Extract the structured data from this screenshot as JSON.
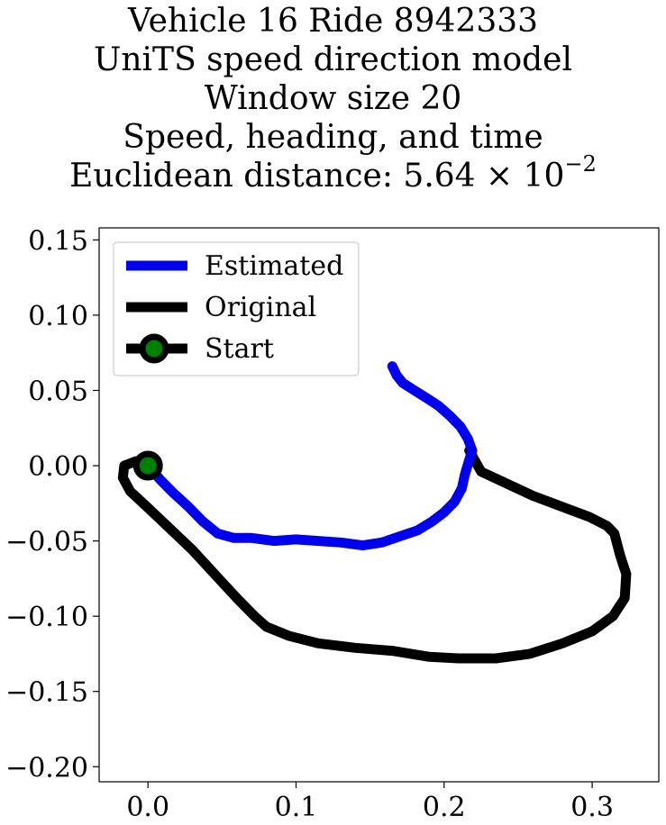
{
  "chart_data": {
    "type": "line",
    "title_lines": [
      "Vehicle 16 Ride 8942333",
      "UniTS speed direction model",
      "Window size 20",
      "Speed, heading, and time"
    ],
    "title_metric_label": "Euclidean distance: ",
    "title_metric_mantissa": "5.64",
    "title_metric_times": "×",
    "title_metric_base": "10",
    "title_metric_exponent": "−2",
    "xlim": [
      -0.033,
      0.345
    ],
    "ylim": [
      -0.21,
      0.158
    ],
    "x_ticks": [
      {
        "value": 0.0,
        "label": "0.0"
      },
      {
        "value": 0.1,
        "label": "0.1"
      },
      {
        "value": 0.2,
        "label": "0.2"
      },
      {
        "value": 0.3,
        "label": "0.3"
      }
    ],
    "y_ticks": [
      {
        "value": 0.15,
        "label": "0.15"
      },
      {
        "value": 0.1,
        "label": "0.10"
      },
      {
        "value": 0.05,
        "label": "0.05"
      },
      {
        "value": 0.0,
        "label": "0.00"
      },
      {
        "value": -0.05,
        "label": "−0.05"
      },
      {
        "value": -0.1,
        "label": "−0.10"
      },
      {
        "value": -0.15,
        "label": "−0.15"
      },
      {
        "value": -0.2,
        "label": "−0.20"
      }
    ],
    "legend": {
      "location": "upper-left",
      "entries": [
        {
          "label": "Estimated",
          "color": "#0000ee",
          "marker": "none"
        },
        {
          "label": "Original",
          "color": "#000000",
          "marker": "none"
        },
        {
          "label": "Start",
          "color": "#000000",
          "marker": "circle",
          "marker_face": "#008000"
        }
      ]
    },
    "series": [
      {
        "name": "Estimated",
        "color": "#0000ee",
        "x": [
          0.0,
          0.008,
          0.017,
          0.027,
          0.037,
          0.047,
          0.058,
          0.07,
          0.085,
          0.1,
          0.115,
          0.13,
          0.145,
          0.158,
          0.17,
          0.182,
          0.192,
          0.2,
          0.207,
          0.212,
          0.214,
          0.217,
          0.219,
          0.216,
          0.211,
          0.204,
          0.196,
          0.188,
          0.18,
          0.172,
          0.168,
          0.165
        ],
        "y": [
          0.0,
          -0.009,
          -0.018,
          -0.027,
          -0.037,
          -0.045,
          -0.048,
          -0.048,
          -0.05,
          -0.049,
          -0.05,
          -0.051,
          -0.053,
          -0.051,
          -0.047,
          -0.043,
          -0.037,
          -0.031,
          -0.024,
          -0.015,
          -0.006,
          0.004,
          0.01,
          0.018,
          0.026,
          0.033,
          0.04,
          0.045,
          0.05,
          0.055,
          0.06,
          0.066
        ]
      },
      {
        "name": "Original",
        "color": "#000000",
        "x": [
          0.0,
          -0.008,
          -0.016,
          -0.017,
          -0.012,
          0.0,
          0.015,
          0.03,
          0.045,
          0.06,
          0.072,
          0.08,
          0.095,
          0.115,
          0.14,
          0.165,
          0.19,
          0.21,
          0.235,
          0.258,
          0.28,
          0.3,
          0.314,
          0.322,
          0.323,
          0.319,
          0.315,
          0.31,
          0.298,
          0.26,
          0.225,
          0.217
        ],
        "y": [
          0.0,
          0.003,
          0.0,
          -0.008,
          -0.017,
          -0.028,
          -0.042,
          -0.056,
          -0.072,
          -0.088,
          -0.1,
          -0.107,
          -0.113,
          -0.118,
          -0.121,
          -0.123,
          -0.127,
          -0.128,
          -0.128,
          -0.125,
          -0.118,
          -0.11,
          -0.1,
          -0.088,
          -0.072,
          -0.06,
          -0.045,
          -0.04,
          -0.034,
          -0.02,
          -0.004,
          0.01
        ]
      },
      {
        "name": "Start",
        "color": "#000000",
        "marker_face": "#008000",
        "x": [
          0.0
        ],
        "y": [
          0.0
        ]
      }
    ]
  }
}
